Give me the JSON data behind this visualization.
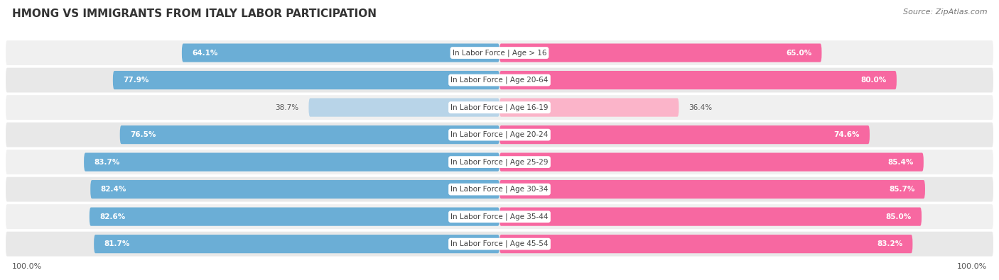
{
  "title": "HMONG VS IMMIGRANTS FROM ITALY LABOR PARTICIPATION",
  "source": "Source: ZipAtlas.com",
  "categories": [
    "In Labor Force | Age > 16",
    "In Labor Force | Age 20-64",
    "In Labor Force | Age 16-19",
    "In Labor Force | Age 20-24",
    "In Labor Force | Age 25-29",
    "In Labor Force | Age 30-34",
    "In Labor Force | Age 35-44",
    "In Labor Force | Age 45-54"
  ],
  "hmong_values": [
    64.1,
    77.9,
    38.7,
    76.5,
    83.7,
    82.4,
    82.6,
    81.7
  ],
  "italy_values": [
    65.0,
    80.0,
    36.4,
    74.6,
    85.4,
    85.7,
    85.0,
    83.2
  ],
  "hmong_color": "#6baed6",
  "hmong_color_light": "#b8d4e8",
  "italy_color": "#f768a1",
  "italy_color_light": "#fbb4c9",
  "row_bg_color_even": "#f0f0f0",
  "row_bg_color_odd": "#e8e8e8",
  "title_fontsize": 11,
  "source_fontsize": 8,
  "label_fontsize": 7.5,
  "value_fontsize": 7.5,
  "legend_fontsize": 9,
  "axis_max": 100.0,
  "background_color": "#ffffff"
}
